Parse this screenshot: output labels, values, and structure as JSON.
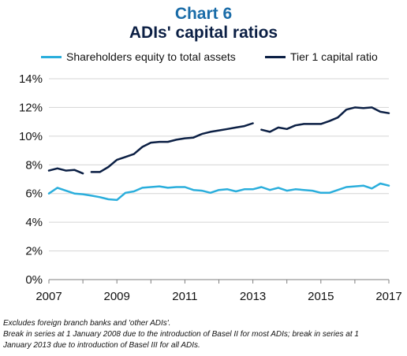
{
  "header": {
    "chart_number": "Chart 6",
    "title": "ADIs' capital ratios"
  },
  "notes": [
    "Excludes foreign branch banks and 'other ADIs'.",
    "Break in series at 1 January 2008 due to the introduction of Basel II for most ADIs; break in series at 1",
    "January 2013 due to introduction of Basel III for all ADIs."
  ],
  "chart_data": {
    "type": "line",
    "title": "ADIs' capital ratios",
    "xlabel": "",
    "ylabel": "",
    "xlim": [
      2007,
      2017
    ],
    "ylim": [
      0,
      14
    ],
    "x_ticks": [
      "2007",
      "2009",
      "2011",
      "2013",
      "2015",
      "2017"
    ],
    "y_ticks": [
      "0%",
      "2%",
      "4%",
      "6%",
      "8%",
      "10%",
      "12%",
      "14%"
    ],
    "grid": true,
    "legend_position": "top",
    "series": [
      {
        "name": "Shareholders equity to total assets",
        "color": "#2aaedc",
        "segments": [
          [
            [
              2007.0,
              6.0
            ],
            [
              2007.25,
              6.4
            ],
            [
              2007.5,
              6.2
            ],
            [
              2007.75,
              6.0
            ],
            [
              2008.0,
              5.95
            ],
            [
              2008.25,
              5.85
            ],
            [
              2008.5,
              5.75
            ],
            [
              2008.75,
              5.6
            ],
            [
              2009.0,
              5.55
            ],
            [
              2009.25,
              6.05
            ],
            [
              2009.5,
              6.15
            ],
            [
              2009.75,
              6.4
            ],
            [
              2010.0,
              6.45
            ],
            [
              2010.25,
              6.5
            ],
            [
              2010.5,
              6.4
            ],
            [
              2010.75,
              6.45
            ],
            [
              2011.0,
              6.45
            ],
            [
              2011.25,
              6.25
            ],
            [
              2011.5,
              6.2
            ],
            [
              2011.75,
              6.05
            ],
            [
              2012.0,
              6.25
            ],
            [
              2012.25,
              6.3
            ],
            [
              2012.5,
              6.15
            ],
            [
              2012.75,
              6.3
            ],
            [
              2013.0,
              6.3
            ],
            [
              2013.25,
              6.45
            ],
            [
              2013.5,
              6.25
            ],
            [
              2013.75,
              6.4
            ],
            [
              2014.0,
              6.2
            ],
            [
              2014.25,
              6.3
            ],
            [
              2014.5,
              6.25
            ],
            [
              2014.75,
              6.2
            ],
            [
              2015.0,
              6.05
            ],
            [
              2015.25,
              6.05
            ],
            [
              2015.5,
              6.25
            ],
            [
              2015.75,
              6.45
            ],
            [
              2016.0,
              6.5
            ],
            [
              2016.25,
              6.55
            ],
            [
              2016.5,
              6.35
            ],
            [
              2016.75,
              6.7
            ],
            [
              2017.0,
              6.55
            ]
          ]
        ]
      },
      {
        "name": "Tier 1 capital ratio",
        "color": "#0b1f44",
        "segments": [
          [
            [
              2007.0,
              7.6
            ],
            [
              2007.25,
              7.75
            ],
            [
              2007.5,
              7.6
            ],
            [
              2007.75,
              7.65
            ],
            [
              2008.0,
              7.4
            ]
          ],
          [
            [
              2008.25,
              7.5
            ],
            [
              2008.5,
              7.5
            ],
            [
              2008.75,
              7.85
            ],
            [
              2009.0,
              8.35
            ],
            [
              2009.25,
              8.55
            ],
            [
              2009.5,
              8.75
            ],
            [
              2009.75,
              9.25
            ],
            [
              2010.0,
              9.55
            ],
            [
              2010.25,
              9.6
            ],
            [
              2010.5,
              9.6
            ],
            [
              2010.75,
              9.75
            ],
            [
              2011.0,
              9.85
            ],
            [
              2011.25,
              9.9
            ],
            [
              2011.5,
              10.15
            ],
            [
              2011.75,
              10.3
            ],
            [
              2012.0,
              10.4
            ],
            [
              2012.25,
              10.5
            ],
            [
              2012.5,
              10.6
            ],
            [
              2012.75,
              10.7
            ],
            [
              2013.0,
              10.9
            ]
          ],
          [
            [
              2013.25,
              10.45
            ],
            [
              2013.5,
              10.3
            ],
            [
              2013.75,
              10.6
            ],
            [
              2014.0,
              10.5
            ],
            [
              2014.25,
              10.75
            ],
            [
              2014.5,
              10.85
            ],
            [
              2014.75,
              10.85
            ],
            [
              2015.0,
              10.85
            ],
            [
              2015.25,
              11.05
            ],
            [
              2015.5,
              11.3
            ],
            [
              2015.75,
              11.85
            ],
            [
              2016.0,
              12.0
            ],
            [
              2016.25,
              11.95
            ],
            [
              2016.5,
              12.0
            ],
            [
              2016.75,
              11.7
            ],
            [
              2017.0,
              11.6
            ]
          ]
        ]
      }
    ]
  }
}
